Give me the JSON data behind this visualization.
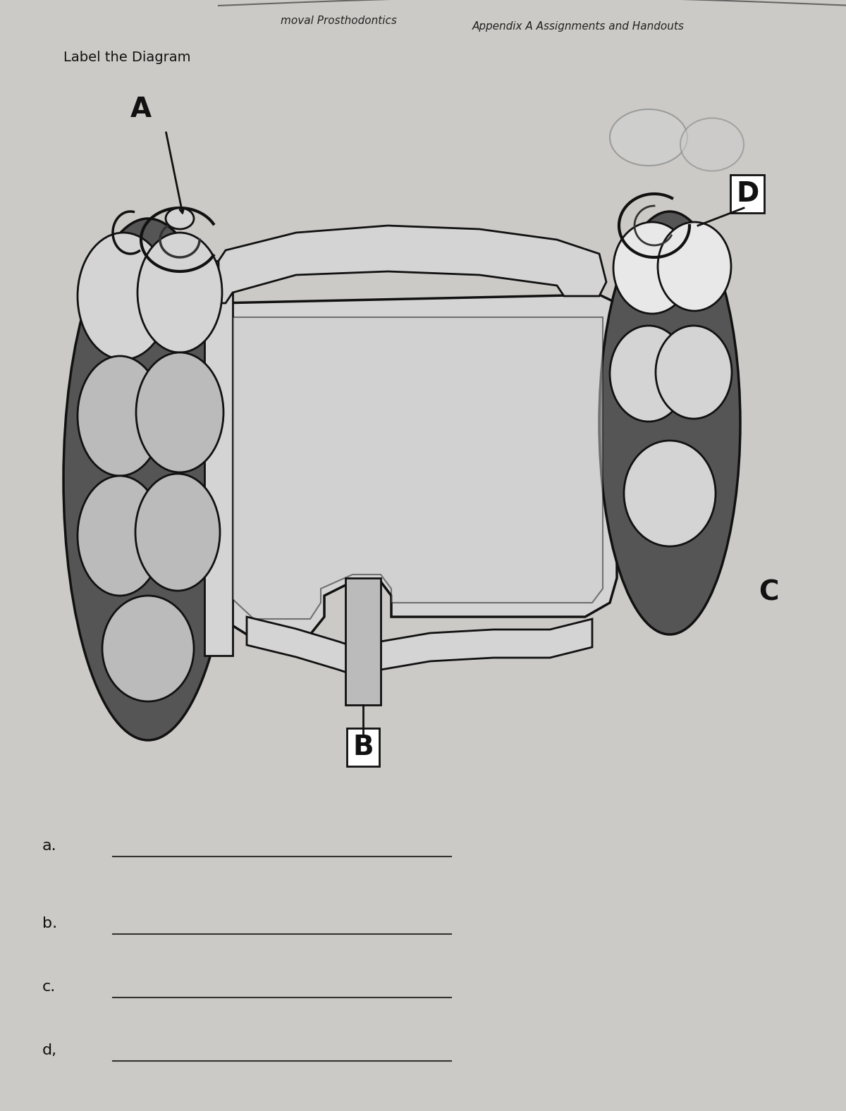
{
  "bg_color": "#cccac6",
  "diagram_bg": "#d8d6d2",
  "title_label_diagram": "Label the Diagram",
  "header_left": "moval Prosthodontics",
  "header_right": "Appendix A Assignments and Handouts",
  "label_A": "A",
  "label_B": "B",
  "label_C": "C",
  "label_D": "D",
  "answer_labels": [
    "a.",
    "b.",
    "c.",
    "d,"
  ],
  "dark_gray": "#555555",
  "mid_gray": "#888888",
  "light_gray": "#bbbbbb",
  "lighter_gray": "#d4d4d4",
  "tooth_white": "#e8e8e8",
  "outline": "#111111"
}
